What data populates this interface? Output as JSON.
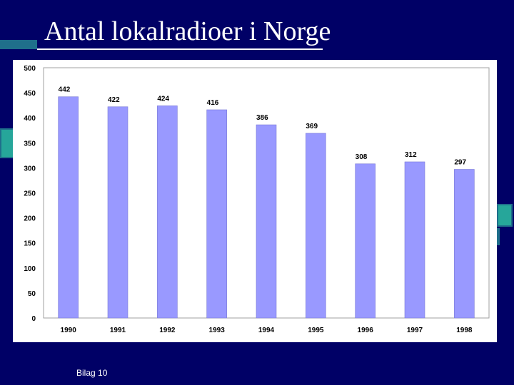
{
  "slide": {
    "title": "Antal lokalradioer i Norge",
    "footer": "Bilag 10",
    "background_color": "#000066",
    "accent_color": "#1a6b8a"
  },
  "chart_data": {
    "type": "bar",
    "categories": [
      "1990",
      "1991",
      "1992",
      "1993",
      "1994",
      "1995",
      "1996",
      "1997",
      "1998"
    ],
    "values": [
      442,
      422,
      424,
      416,
      386,
      369,
      308,
      312,
      297
    ],
    "title": "",
    "xlabel": "",
    "ylabel": "",
    "ylim": [
      0,
      500
    ],
    "yticks": [
      0,
      50,
      100,
      150,
      200,
      250,
      300,
      350,
      400,
      450,
      500
    ],
    "grid": false,
    "legend": "none",
    "bar_color": "#9999ff"
  }
}
